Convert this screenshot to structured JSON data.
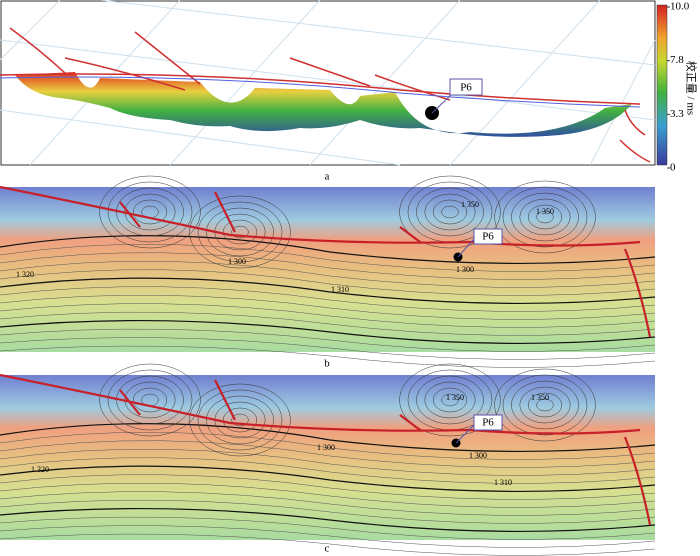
{
  "colorbar": {
    "title": "校正量 / ms",
    "ticks": [
      {
        "value": 10,
        "label": "10.0"
      },
      7.8,
      3.3,
      0
    ]
  },
  "panels": [
    {
      "label": "a",
      "well": "P6"
    },
    {
      "label": "b",
      "well": "P6",
      "contour_labels": [
        "1 350",
        "1 350",
        "1 300",
        "1 300",
        "1 310",
        "1 320"
      ]
    },
    {
      "label": "c",
      "well": "P6",
      "contour_labels": [
        "1 350",
        "1 350",
        "1 300",
        "1 300",
        "1 310",
        "1 320"
      ]
    }
  ]
}
